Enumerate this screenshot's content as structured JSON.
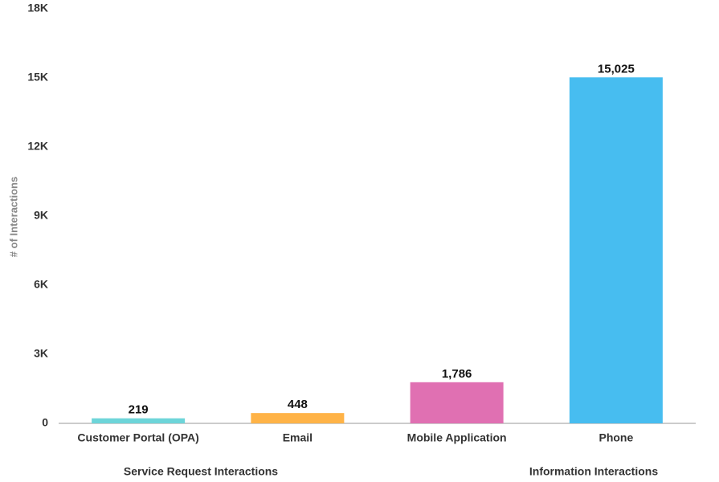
{
  "chart_data": {
    "type": "bar",
    "ylabel": "# of Interactions",
    "categories": [
      "Customer Portal (OPA)",
      "Email",
      "Mobile Application",
      "Phone"
    ],
    "values": [
      219,
      448,
      1786,
      15025
    ],
    "value_labels": [
      "219",
      "448",
      "1,786",
      "15,025"
    ],
    "colors": [
      "#6dd5d9",
      "#ffb347",
      "#e070b2",
      "#47bdf0"
    ],
    "groups": [
      "Service Request Interactions",
      "Information Interactions"
    ],
    "ylim": [
      0,
      18000
    ],
    "yticks": [
      0,
      {
        "value": 3000,
        "label": "3K"
      },
      {
        "value": 6000,
        "label": "6K"
      },
      {
        "value": 9000,
        "label": "9K"
      },
      {
        "value": 12000,
        "label": "12K"
      },
      {
        "value": 15000,
        "label": "15K"
      },
      {
        "value": 18000,
        "label": "18K"
      }
    ],
    "grid": false
  }
}
